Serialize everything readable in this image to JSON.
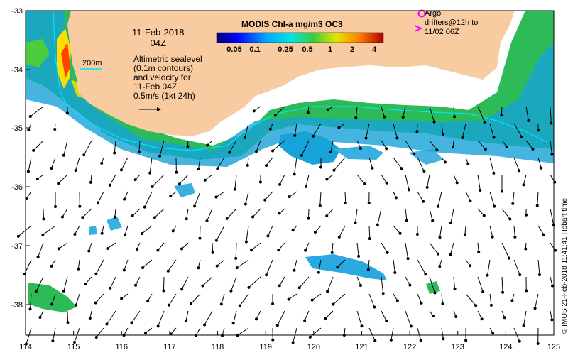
{
  "map": {
    "date_line1": "11-Feb-2018",
    "date_line2": "04Z",
    "description_lines": [
      "Altimetric sealevel",
      "(0.1m contours)",
      "and velocity for",
      "11-Feb 04Z",
      "0.5m/s (1kt 24h)"
    ],
    "contour_label": "200m",
    "lon_ticks": [
      "114",
      "115",
      "116",
      "117",
      "118",
      "119",
      "120",
      "121",
      "122",
      "123",
      "124",
      "125"
    ],
    "lat_ticks": [
      "-33",
      "-34",
      "-35",
      "-36",
      "-37",
      "-38"
    ],
    "colorbar": {
      "title": "MODIS Chl-a mg/m3 OC3",
      "ticks": [
        "0.05",
        "0.1",
        "0.25",
        "0.5",
        "1",
        "2",
        "4"
      ]
    },
    "legend": {
      "argo_label": "Argo",
      "drifter_lines": [
        "drifters@12h to",
        "11/02 06Z"
      ]
    },
    "credit": "© IMOS 21-Feb-2018 11:41:41 Hobart time",
    "colors": {
      "land": "#f9cba0",
      "ocean": "#ffffff",
      "contour": "#00e5ff",
      "argo_marker": "#ff00ff",
      "chl_high": "#ff2200",
      "chl_mid": "#22bb44",
      "chl_low": "#1e9be6"
    }
  }
}
